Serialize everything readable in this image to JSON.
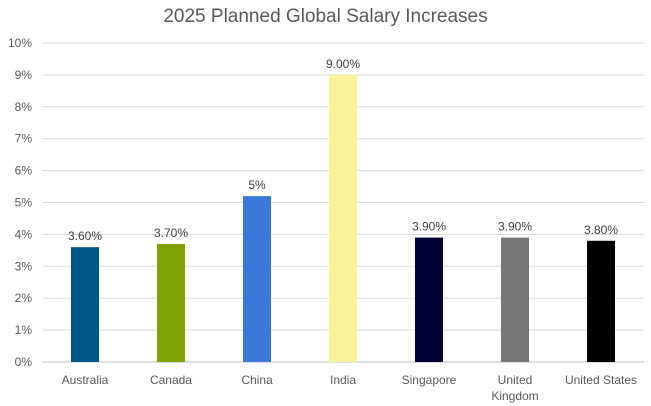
{
  "chart_data": {
    "type": "bar",
    "title": "2025 Planned Global Salary Increases",
    "categories": [
      "Australia",
      "Canada",
      "China",
      "India",
      "Singapore",
      "United Kingdom",
      "United States"
    ],
    "category_label_lines": [
      [
        "Australia"
      ],
      [
        "Canada"
      ],
      [
        "China"
      ],
      [
        "India"
      ],
      [
        "Singapore"
      ],
      [
        "United",
        "Kingdom"
      ],
      [
        "United States"
      ]
    ],
    "values": [
      3.6,
      3.7,
      5.2,
      9.0,
      3.9,
      3.9,
      3.8
    ],
    "data_labels": [
      "3.60%",
      "3.70%",
      "5%",
      "9.00%",
      "3.90%",
      "3.90%",
      "3.80%"
    ],
    "bar_colors": [
      "#00588a",
      "#7ea300",
      "#3c78d8",
      "#f8f29a",
      "#000033",
      "#767676",
      "#000000"
    ],
    "y_ticks": [
      "0%",
      "1%",
      "2%",
      "3%",
      "4%",
      "5%",
      "6%",
      "7%",
      "8%",
      "9%",
      "10%"
    ],
    "ylim": [
      0,
      10
    ],
    "grid": true,
    "legend": "none",
    "xlabel": "",
    "ylabel": ""
  }
}
